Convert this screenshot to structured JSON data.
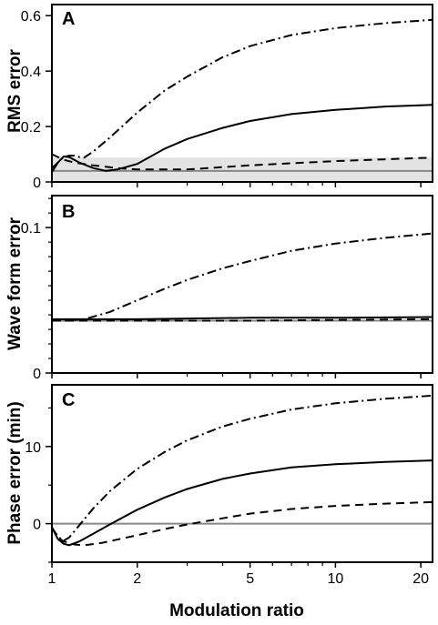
{
  "x_axis": {
    "label": "Modulation ratio",
    "scale": "log",
    "range": [
      1,
      22
    ],
    "ticks": [
      1,
      2,
      5,
      10,
      20
    ],
    "tick_labels": [
      "1",
      "2",
      "5",
      "10",
      "20"
    ],
    "minor_ticks": [
      3,
      4,
      6,
      7,
      8,
      9
    ]
  },
  "chart_data": [
    {
      "type": "line",
      "panel": "A",
      "ylabel": "RMS error",
      "ylim": [
        0,
        0.64
      ],
      "yticks": [
        0,
        0.2,
        0.4,
        0.6
      ],
      "ytick_labels": [
        "0",
        "0.2",
        "0.4",
        "0.6"
      ],
      "shaded_band": [
        0,
        0.088
      ],
      "reference_line": 0.04,
      "series": [
        {
          "style": "solid",
          "points": [
            [
              1,
              0.035
            ],
            [
              1.05,
              0.07
            ],
            [
              1.1,
              0.092
            ],
            [
              1.15,
              0.09
            ],
            [
              1.25,
              0.07
            ],
            [
              1.4,
              0.05
            ],
            [
              1.55,
              0.04
            ],
            [
              1.7,
              0.045
            ],
            [
              2,
              0.065
            ],
            [
              2.5,
              0.12
            ],
            [
              3,
              0.155
            ],
            [
              4,
              0.195
            ],
            [
              5,
              0.22
            ],
            [
              7,
              0.245
            ],
            [
              10,
              0.26
            ],
            [
              15,
              0.272
            ],
            [
              22,
              0.278
            ]
          ]
        },
        {
          "style": "dashed",
          "points": [
            [
              1,
              0.1
            ],
            [
              1.1,
              0.08
            ],
            [
              1.2,
              0.07
            ],
            [
              1.4,
              0.06
            ],
            [
              1.7,
              0.05
            ],
            [
              2,
              0.045
            ],
            [
              3,
              0.045
            ],
            [
              5,
              0.06
            ],
            [
              10,
              0.075
            ],
            [
              22,
              0.088
            ]
          ]
        },
        {
          "style": "dash-dot",
          "points": [
            [
              1,
              0.05
            ],
            [
              1.05,
              0.07
            ],
            [
              1.1,
              0.09
            ],
            [
              1.15,
              0.095
            ],
            [
              1.2,
              0.095
            ],
            [
              1.25,
              0.09
            ],
            [
              1.3,
              0.088
            ],
            [
              1.4,
              0.11
            ],
            [
              1.6,
              0.16
            ],
            [
              2,
              0.25
            ],
            [
              2.5,
              0.33
            ],
            [
              3,
              0.38
            ],
            [
              4,
              0.45
            ],
            [
              5,
              0.49
            ],
            [
              7,
              0.53
            ],
            [
              10,
              0.555
            ],
            [
              15,
              0.573
            ],
            [
              22,
              0.585
            ]
          ]
        }
      ]
    },
    {
      "type": "line",
      "panel": "B",
      "ylabel": "Wave form error",
      "ylim": [
        0,
        0.122
      ],
      "yticks": [
        0,
        0.1
      ],
      "ytick_labels": [
        "0",
        "0.1"
      ],
      "minor_yticks": [
        0.01,
        0.02,
        0.03,
        0.04,
        0.05,
        0.06,
        0.07,
        0.08,
        0.09,
        0.11,
        0.12
      ],
      "reference_line": 0.036,
      "series": [
        {
          "style": "solid",
          "points": [
            [
              1,
              0.037
            ],
            [
              2,
              0.037
            ],
            [
              5,
              0.038
            ],
            [
              10,
              0.038
            ],
            [
              22,
              0.0385
            ]
          ]
        },
        {
          "style": "dashed",
          "points": [
            [
              1,
              0.036
            ],
            [
              2,
              0.036
            ],
            [
              5,
              0.036
            ],
            [
              10,
              0.0365
            ],
            [
              22,
              0.037
            ]
          ]
        },
        {
          "style": "dash-dot",
          "points": [
            [
              1,
              0.036
            ],
            [
              1.1,
              0.036
            ],
            [
              1.3,
              0.037
            ],
            [
              1.6,
              0.042
            ],
            [
              2,
              0.05
            ],
            [
              2.5,
              0.058
            ],
            [
              3,
              0.064
            ],
            [
              4,
              0.072
            ],
            [
              5,
              0.077
            ],
            [
              7,
              0.084
            ],
            [
              10,
              0.089
            ],
            [
              15,
              0.093
            ],
            [
              22,
              0.096
            ]
          ]
        }
      ]
    },
    {
      "type": "line",
      "panel": "C",
      "ylabel": "Phase error (min)",
      "ylim": [
        -5,
        18
      ],
      "yticks": [
        0,
        10
      ],
      "ytick_labels": [
        "0",
        "10"
      ],
      "minor_yticks": [
        -5,
        5,
        15
      ],
      "reference_line": 0,
      "series": [
        {
          "style": "solid",
          "points": [
            [
              1,
              -0.5
            ],
            [
              1.05,
              -2
            ],
            [
              1.1,
              -2.6
            ],
            [
              1.15,
              -2.8
            ],
            [
              1.25,
              -2.3
            ],
            [
              1.4,
              -1.3
            ],
            [
              1.6,
              -0.1
            ],
            [
              2,
              1.8
            ],
            [
              2.5,
              3.4
            ],
            [
              3,
              4.5
            ],
            [
              4,
              5.8
            ],
            [
              5,
              6.5
            ],
            [
              7,
              7.3
            ],
            [
              10,
              7.7
            ],
            [
              15,
              8
            ],
            [
              22,
              8.2
            ]
          ]
        },
        {
          "style": "dashed",
          "points": [
            [
              1,
              -0.5
            ],
            [
              1.05,
              -1.8
            ],
            [
              1.1,
              -2.3
            ],
            [
              1.2,
              -2.7
            ],
            [
              1.3,
              -2.8
            ],
            [
              1.5,
              -2.5
            ],
            [
              2,
              -1.5
            ],
            [
              2.5,
              -0.7
            ],
            [
              3,
              -0.1
            ],
            [
              4,
              0.7
            ],
            [
              5,
              1.3
            ],
            [
              7,
              1.9
            ],
            [
              10,
              2.3
            ],
            [
              15,
              2.6
            ],
            [
              22,
              2.8
            ]
          ]
        },
        {
          "style": "dash-dot",
          "points": [
            [
              1,
              -0.5
            ],
            [
              1.05,
              -1.7
            ],
            [
              1.1,
              -2.2
            ],
            [
              1.15,
              -1.8
            ],
            [
              1.25,
              -0.2
            ],
            [
              1.4,
              2
            ],
            [
              1.6,
              4.2
            ],
            [
              2,
              7.1
            ],
            [
              2.5,
              9.3
            ],
            [
              3,
              10.8
            ],
            [
              4,
              12.6
            ],
            [
              5,
              13.6
            ],
            [
              7,
              14.8
            ],
            [
              10,
              15.6
            ],
            [
              15,
              16.2
            ],
            [
              22,
              16.6
            ]
          ]
        }
      ]
    }
  ]
}
